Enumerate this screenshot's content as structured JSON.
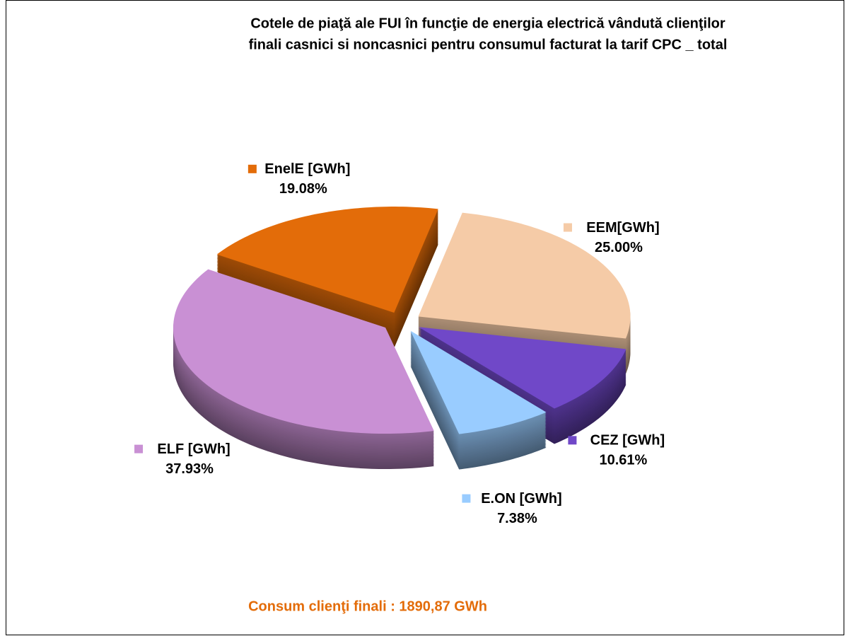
{
  "chart_data": {
    "type": "pie3d",
    "title": [
      "Cotele de piaţă ale FUI  în funcţie de energia electrică vândută clienţilor",
      "finali casnici si noncasnici pentru consumul facturat  la  tarif  CPC  _  total"
    ],
    "categories": [
      "EEM[GWh]",
      "CEZ [GWh]",
      "E.ON [GWh]",
      "ELF [GWh]",
      "EnelE [GWh]"
    ],
    "values": [
      25.0,
      10.61,
      7.38,
      37.93,
      19.08
    ],
    "value_labels": [
      "25.00%",
      "10.61%",
      "7.38%",
      "37.93%",
      "19.08%"
    ],
    "colors": [
      "#f5cba7",
      "#7048c8",
      "#99ccff",
      "#c990d4",
      "#e36c09"
    ],
    "annotation": "Consum clienţi finali  : 1890,87 GWh"
  }
}
